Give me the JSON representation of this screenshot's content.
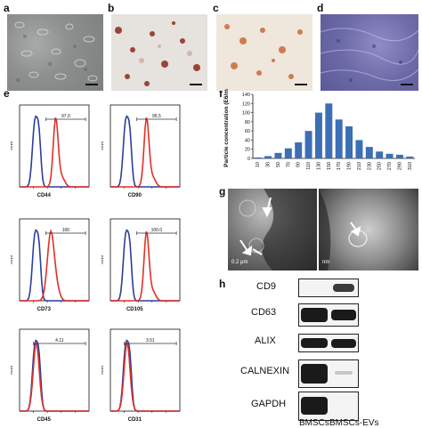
{
  "panels": {
    "a": "a",
    "b": "b",
    "c": "c",
    "d": "d",
    "e": "e",
    "f": "f",
    "g": "g",
    "h": "h"
  },
  "flow": {
    "count_label": "count",
    "plots": [
      {
        "marker": "CD44",
        "gate": "97.0"
      },
      {
        "marker": "CD90",
        "gate": "95.5"
      },
      {
        "marker": "CD73",
        "gate": "100"
      },
      {
        "marker": "CD105",
        "gate": "100.0"
      },
      {
        "marker": "CD45",
        "gate": "4.11"
      },
      {
        "marker": "CD31",
        "gate": "3.51"
      }
    ],
    "colors": {
      "control": "#2b3f9a",
      "marker": "#e0302a"
    }
  },
  "tem": {
    "scale_left": "0.2 μm",
    "scale_right": "nm"
  },
  "western": {
    "bands": [
      "CD9",
      "CD63",
      "ALIX",
      "CALNEXIN",
      "GAPDH"
    ],
    "lanes": [
      "BMSCs",
      "BMSCs-EVs"
    ]
  },
  "chart_data": {
    "type": "bar",
    "title": "",
    "xlabel": "",
    "ylabel": "Particle concentration (E6/ml)",
    "categories": [
      "10",
      "30",
      "50",
      "70",
      "90",
      "110",
      "130",
      "150",
      "170",
      "190",
      "210",
      "230",
      "250",
      "270",
      "290",
      "310"
    ],
    "values": [
      2,
      5,
      12,
      22,
      35,
      60,
      100,
      120,
      85,
      70,
      40,
      25,
      15,
      10,
      8,
      4
    ],
    "ylim": [
      0,
      140
    ],
    "yticks": [
      0,
      20,
      40,
      60,
      80,
      100,
      120,
      140
    ],
    "color": "#3b6fb6",
    "grid": false
  }
}
